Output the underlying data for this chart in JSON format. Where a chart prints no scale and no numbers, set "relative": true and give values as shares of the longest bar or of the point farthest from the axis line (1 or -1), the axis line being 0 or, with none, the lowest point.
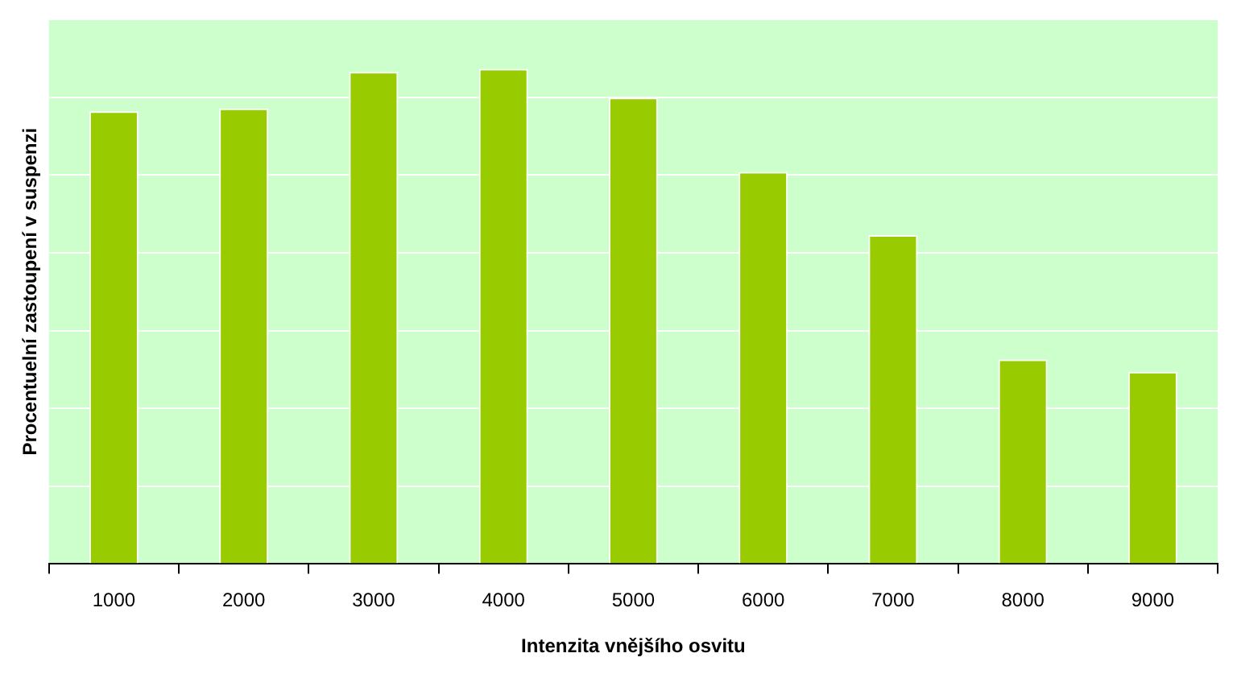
{
  "chart_data": {
    "type": "bar",
    "relative": true,
    "xlabel": "Intenzita vnějšího osvitu",
    "ylabel": "Procentuelní zastoupení v suspenzi",
    "categories": [
      "1000",
      "2000",
      "3000",
      "4000",
      "5000",
      "6000",
      "7000",
      "8000",
      "9000"
    ],
    "values": [
      0.914,
      0.92,
      0.994,
      1,
      0.942,
      0.792,
      0.664,
      0.413,
      0.388
    ],
    "color": "#99cc00",
    "grid": "y",
    "legend": false
  }
}
